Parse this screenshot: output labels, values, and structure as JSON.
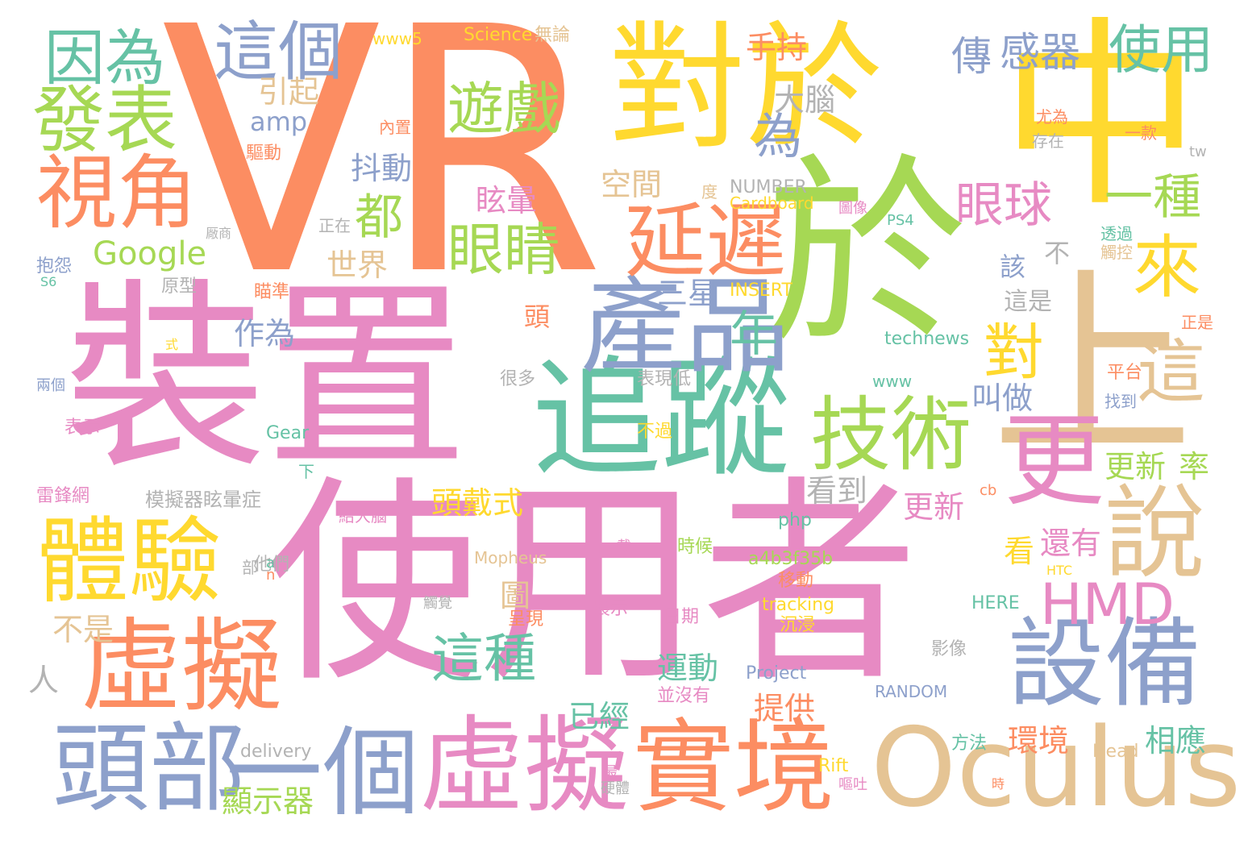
{
  "colors": {
    "orange": "#fc8d62",
    "green": "#a6d854",
    "yellow": "#ffd92f",
    "pink": "#e78ac3",
    "tan": "#e5c494",
    "teal": "#66c2a5",
    "blue": "#8da0cb",
    "gray": "#b3b3b3"
  },
  "words": [
    {
      "text": "VR",
      "color": "orange"
    },
    {
      "text": "中",
      "color": "yellow"
    },
    {
      "text": "於",
      "color": "green"
    },
    {
      "text": "上",
      "color": "tan"
    },
    {
      "text": "對於",
      "color": "yellow"
    },
    {
      "text": "裝置",
      "color": "pink"
    },
    {
      "text": "使用者",
      "color": "pink"
    },
    {
      "text": "追蹤",
      "color": "teal"
    },
    {
      "text": "產品",
      "color": "blue"
    },
    {
      "text": "虛擬",
      "color": "orange"
    },
    {
      "text": "虛擬",
      "color": "pink"
    },
    {
      "text": "實境",
      "color": "orange"
    },
    {
      "text": "Oculus",
      "color": "tan"
    },
    {
      "text": "頭部",
      "color": "blue"
    },
    {
      "text": "一個",
      "color": "blue"
    },
    {
      "text": "體驗",
      "color": "yellow"
    },
    {
      "text": "設備",
      "color": "blue"
    },
    {
      "text": "延遲",
      "color": "orange"
    },
    {
      "text": "技術",
      "color": "green"
    },
    {
      "text": "視角",
      "color": "orange"
    },
    {
      "text": "發表",
      "color": "green"
    },
    {
      "text": "因為",
      "color": "teal"
    },
    {
      "text": "這個",
      "color": "blue"
    },
    {
      "text": "遊戲",
      "color": "green"
    },
    {
      "text": "眼睛",
      "color": "green"
    },
    {
      "text": "HMD",
      "color": "pink"
    },
    {
      "text": "更",
      "color": "pink"
    },
    {
      "text": "說",
      "color": "tan"
    },
    {
      "text": "來",
      "color": "yellow"
    },
    {
      "text": "這",
      "color": "tan"
    },
    {
      "text": "對",
      "color": "yellow"
    },
    {
      "text": "使用",
      "color": "teal"
    },
    {
      "text": "一種",
      "color": "green"
    },
    {
      "text": "眼球",
      "color": "pink"
    },
    {
      "text": "感器",
      "color": "blue"
    },
    {
      "text": "傳",
      "color": "blue"
    },
    {
      "text": "都",
      "color": "green"
    },
    {
      "text": "為",
      "color": "blue"
    },
    {
      "text": "年",
      "color": "teal"
    },
    {
      "text": "這種",
      "color": "teal"
    },
    {
      "text": "Google",
      "color": "green"
    },
    {
      "text": "手持",
      "color": "orange"
    },
    {
      "text": "大腦",
      "color": "gray"
    },
    {
      "text": "抖動",
      "color": "blue"
    },
    {
      "text": "amp",
      "color": "blue"
    },
    {
      "text": "引起",
      "color": "tan"
    },
    {
      "text": "空間",
      "color": "tan"
    },
    {
      "text": "眩暈",
      "color": "pink"
    },
    {
      "text": "世界",
      "color": "tan"
    },
    {
      "text": "三星",
      "color": "blue"
    },
    {
      "text": "作為",
      "color": "blue"
    },
    {
      "text": "頭戴式",
      "color": "yellow"
    },
    {
      "text": "更新",
      "color": "pink"
    },
    {
      "text": "更新",
      "color": "green"
    },
    {
      "text": "率",
      "color": "green"
    },
    {
      "text": "叫做",
      "color": "blue"
    },
    {
      "text": "看到",
      "color": "gray"
    },
    {
      "text": "還有",
      "color": "pink"
    },
    {
      "text": "環境",
      "color": "orange"
    },
    {
      "text": "相應",
      "color": "teal"
    },
    {
      "text": "這是",
      "color": "gray"
    },
    {
      "text": "該",
      "color": "blue"
    },
    {
      "text": "不",
      "color": "gray"
    },
    {
      "text": "已經",
      "color": "teal"
    },
    {
      "text": "運動",
      "color": "teal"
    },
    {
      "text": "提供",
      "color": "orange"
    },
    {
      "text": "顯示器",
      "color": "green"
    },
    {
      "text": "不是",
      "color": "tan"
    },
    {
      "text": "人",
      "color": "gray"
    },
    {
      "text": "圖",
      "color": "tan"
    },
    {
      "text": "看",
      "color": "yellow"
    },
    {
      "text": "頭",
      "color": "orange"
    },
    {
      "text": "Science",
      "color": "yellow"
    },
    {
      "text": "無論",
      "color": "tan"
    },
    {
      "text": "www5",
      "color": "yellow"
    },
    {
      "text": "NUMBER",
      "color": "gray"
    },
    {
      "text": "Cardboard",
      "color": "yellow"
    },
    {
      "text": "INSERT",
      "color": "yellow"
    },
    {
      "text": "technews",
      "color": "teal"
    },
    {
      "text": "www",
      "color": "teal"
    },
    {
      "text": "Gear",
      "color": "teal"
    },
    {
      "text": "模擬器",
      "color": "gray"
    },
    {
      "text": "眩暈症",
      "color": "gray"
    },
    {
      "text": "他們",
      "color": "gray"
    },
    {
      "text": "php",
      "color": "teal"
    },
    {
      "text": "a4b3f35b",
      "color": "green"
    },
    {
      "text": "tracking",
      "color": "yellow"
    },
    {
      "text": "Project",
      "color": "blue"
    },
    {
      "text": "RANDOM",
      "color": "blue"
    },
    {
      "text": "HERE",
      "color": "teal"
    },
    {
      "text": "Mopheus",
      "color": "tan"
    },
    {
      "text": "delivery",
      "color": "gray"
    },
    {
      "text": "Rift",
      "color": "yellow"
    },
    {
      "text": "Head",
      "color": "tan"
    },
    {
      "text": "HTC",
      "color": "yellow"
    },
    {
      "text": "PS4",
      "color": "teal"
    },
    {
      "text": "移動",
      "color": "orange"
    },
    {
      "text": "時候",
      "color": "green"
    },
    {
      "text": "展示",
      "color": "pink"
    },
    {
      "text": "日期",
      "color": "pink"
    },
    {
      "text": "沉浸",
      "color": "yellow"
    },
    {
      "text": "影像",
      "color": "gray"
    },
    {
      "text": "表現",
      "color": "gray"
    },
    {
      "text": "低",
      "color": "gray"
    },
    {
      "text": "不過",
      "color": "yellow"
    },
    {
      "text": "並沒有",
      "color": "pink"
    },
    {
      "text": "方法",
      "color": "teal"
    },
    {
      "text": "很多",
      "color": "gray"
    },
    {
      "text": "正在",
      "color": "gray"
    },
    {
      "text": "原型",
      "color": "gray"
    },
    {
      "text": "抱怨",
      "color": "blue"
    },
    {
      "text": "瞄準",
      "color": "orange"
    },
    {
      "text": "驅動",
      "color": "orange"
    },
    {
      "text": "內置",
      "color": "orange"
    },
    {
      "text": "存在",
      "color": "gray"
    },
    {
      "text": "尤為",
      "color": "orange"
    },
    {
      "text": "一款",
      "color": "orange"
    },
    {
      "text": "透過",
      "color": "teal"
    },
    {
      "text": "觸控",
      "color": "tan"
    },
    {
      "text": "圖像",
      "color": "pink"
    },
    {
      "text": "平台",
      "color": "orange"
    },
    {
      "text": "找到",
      "color": "blue"
    },
    {
      "text": "正是",
      "color": "orange"
    },
    {
      "text": "雷鋒網",
      "color": "pink"
    },
    {
      "text": "表示",
      "color": "pink"
    },
    {
      "text": "兩個",
      "color": "blue"
    },
    {
      "text": "給大腦",
      "color": "pink"
    },
    {
      "text": "S6",
      "color": "teal"
    },
    {
      "text": "度",
      "color": "tan"
    },
    {
      "text": "厰商",
      "color": "gray"
    },
    {
      "text": "部",
      "color": "gray"
    },
    {
      "text": "下",
      "color": "teal"
    },
    {
      "text": "觸覺",
      "color": "gray"
    },
    {
      "text": "呈現",
      "color": "orange"
    },
    {
      "text": "硬體",
      "color": "gray"
    },
    {
      "text": "嘔吐",
      "color": "pink"
    },
    {
      "text": "最",
      "color": "pink"
    },
    {
      "text": "戴",
      "color": "pink"
    },
    {
      "text": "時",
      "color": "orange"
    },
    {
      "text": "tw",
      "color": "gray"
    },
    {
      "text": "cb",
      "color": "orange"
    },
    {
      "text": "a",
      "color": "teal"
    },
    {
      "text": "n",
      "color": "orange"
    },
    {
      "text": "手",
      "color": "pink"
    },
    {
      "text": "式",
      "color": "yellow"
    }
  ]
}
